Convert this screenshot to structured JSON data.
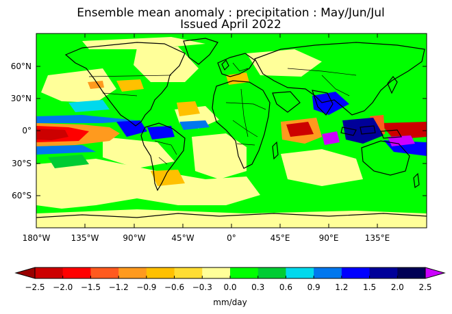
{
  "figure": {
    "title_line1": "Ensemble mean anomaly : precipitation : May/Jun/Jul",
    "title_line2": "Issued April 2022"
  },
  "map": {
    "projection": "plate-carree",
    "lon_ticks": [
      "180°W",
      "135°W",
      "90°W",
      "45°W",
      "0°",
      "45°E",
      "90°E",
      "135°E"
    ],
    "lat_ticks": [
      "60°N",
      "30°N",
      "0°",
      "30°S",
      "60°S"
    ],
    "background_category_color": "#00ff00"
  },
  "colorbar": {
    "unit": "mm/day",
    "tick_labels": [
      "−2.5",
      "−2.0",
      "−1.5",
      "−1.2",
      "−0.9",
      "−0.6",
      "−0.3",
      "0.0",
      "0.3",
      "0.6",
      "0.9",
      "1.2",
      "1.5",
      "2.0",
      "2.5"
    ],
    "colors": [
      "#cc0000",
      "#ff0000",
      "#ff5a1e",
      "#ff9a1e",
      "#ffc000",
      "#ffdd33",
      "#ffff99",
      "#00ff00",
      "#00cc33",
      "#00d9ec",
      "#0077ee",
      "#0000ff",
      "#000099",
      "#000055"
    ],
    "under_color": "#990000",
    "over_color": "#cc00ff",
    "extend": "both"
  }
}
